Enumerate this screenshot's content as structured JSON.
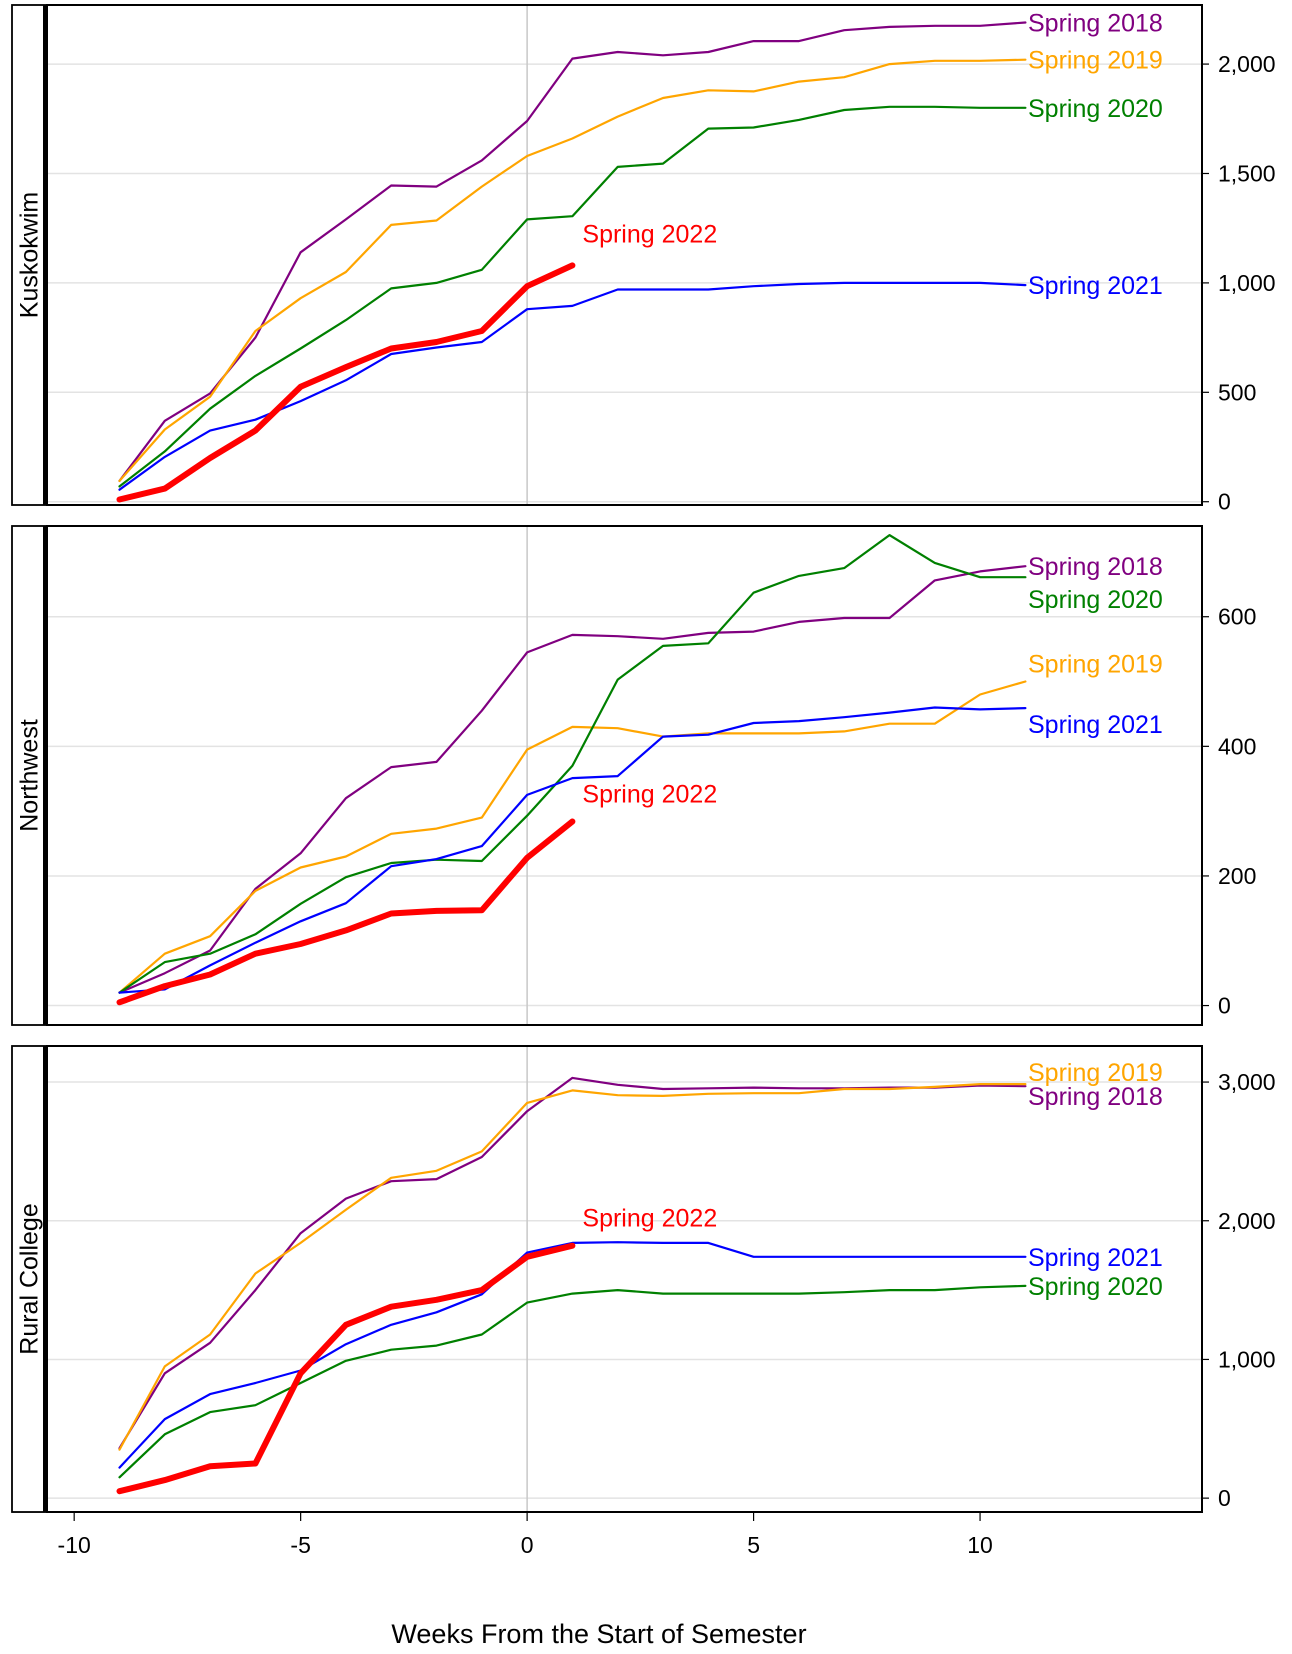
{
  "chart_data": {
    "type": "line",
    "xlabel": "Weeks From the Start of Semester",
    "xlim": [
      -10.6,
      14.9
    ],
    "xticks": [
      -10,
      -5,
      0,
      5,
      10
    ],
    "reference_line_x": 0,
    "grid": "horizontal",
    "y_axis_side": "right",
    "panels": [
      {
        "label": "Kuskokwim",
        "ylim": [
          -15,
          2270
        ],
        "yticks": [
          0,
          500,
          1000,
          1500,
          2000
        ],
        "ytick_labels": [
          "0",
          "500",
          "1,000",
          "1,500",
          "2,000"
        ],
        "series": [
          {
            "name": "Spring 2018",
            "color": "#800080",
            "emphasis": false,
            "x": [
              -9,
              -8,
              -7,
              -6,
              -5,
              -4,
              -3,
              -2,
              -1,
              0,
              1,
              2,
              3,
              4,
              5,
              6,
              7,
              8,
              9,
              10,
              11
            ],
            "values": [
              95,
              370,
              495,
              750,
              1140,
              1290,
              1445,
              1440,
              1560,
              1740,
              2025,
              2055,
              2040,
              2055,
              2105,
              2105,
              2155,
              2170,
              2175,
              2175,
              2190
            ]
          },
          {
            "name": "Spring 2019",
            "color": "#FFA500",
            "emphasis": false,
            "x": [
              -9,
              -8,
              -7,
              -6,
              -5,
              -4,
              -3,
              -2,
              -1,
              0,
              1,
              2,
              3,
              4,
              5,
              6,
              7,
              8,
              9,
              10,
              11
            ],
            "values": [
              95,
              330,
              480,
              780,
              930,
              1050,
              1265,
              1285,
              1440,
              1580,
              1660,
              1760,
              1845,
              1880,
              1875,
              1920,
              1940,
              2000,
              2015,
              2015,
              2020
            ]
          },
          {
            "name": "Spring 2020",
            "color": "#008000",
            "emphasis": false,
            "x": [
              -9,
              -8,
              -7,
              -6,
              -5,
              -4,
              -3,
              -2,
              -1,
              0,
              1,
              2,
              3,
              4,
              5,
              6,
              7,
              8,
              9,
              10,
              11
            ],
            "values": [
              70,
              230,
              425,
              575,
              700,
              830,
              975,
              1000,
              1060,
              1290,
              1305,
              1530,
              1545,
              1705,
              1710,
              1745,
              1790,
              1805,
              1805,
              1800,
              1800
            ]
          },
          {
            "name": "Spring 2021",
            "color": "#0000FF",
            "emphasis": false,
            "x": [
              -9,
              -8,
              -7,
              -6,
              -5,
              -4,
              -3,
              -2,
              -1,
              0,
              1,
              2,
              3,
              4,
              5,
              6,
              7,
              8,
              9,
              10,
              11
            ],
            "values": [
              55,
              205,
              325,
              375,
              460,
              555,
              675,
              705,
              730,
              880,
              895,
              970,
              970,
              970,
              985,
              995,
              1000,
              1000,
              1000,
              1000,
              990
            ]
          },
          {
            "name": "Spring 2022",
            "color": "#FF0000",
            "emphasis": true,
            "x": [
              -9,
              -8,
              -7,
              -6,
              -5,
              -4,
              -3,
              -2,
              -1,
              0,
              1
            ],
            "values": [
              10,
              60,
              200,
              325,
              525,
              615,
              700,
              730,
              780,
              985,
              1080
            ]
          }
        ]
      },
      {
        "label": "Northwest",
        "ylim": [
          -30,
          740
        ],
        "yticks": [
          0,
          200,
          400,
          600
        ],
        "ytick_labels": [
          "0",
          "200",
          "400",
          "600"
        ],
        "series": [
          {
            "name": "Spring 2018",
            "color": "#800080",
            "emphasis": false,
            "x": [
              -9,
              -8,
              -7,
              -6,
              -5,
              -4,
              -3,
              -2,
              -1,
              0,
              1,
              2,
              3,
              4,
              5,
              6,
              7,
              8,
              9,
              10,
              11
            ],
            "values": [
              20,
              50,
              85,
              180,
              235,
              320,
              368,
              376,
              455,
              545,
              572,
              570,
              566,
              575,
              577,
              592,
              598,
              598,
              656,
              670,
              678
            ]
          },
          {
            "name": "Spring 2019",
            "color": "#FFA500",
            "emphasis": false,
            "x": [
              -9,
              -8,
              -7,
              -6,
              -5,
              -4,
              -3,
              -2,
              -1,
              0,
              1,
              2,
              3,
              4,
              5,
              6,
              7,
              8,
              9,
              10,
              11
            ],
            "values": [
              20,
              80,
              107,
              177,
              213,
              230,
              265,
              273,
              290,
              395,
              430,
              428,
              415,
              420,
              420,
              420,
              423,
              435,
              435,
              480,
              500
            ]
          },
          {
            "name": "Spring 2020",
            "color": "#008000",
            "emphasis": false,
            "x": [
              -9,
              -8,
              -7,
              -6,
              -5,
              -4,
              -3,
              -2,
              -1,
              0,
              1,
              2,
              3,
              4,
              5,
              6,
              7,
              8,
              9,
              10,
              11
            ],
            "values": [
              20,
              67,
              80,
              110,
              157,
              198,
              220,
              225,
              223,
              293,
              370,
              503,
              555,
              559,
              637,
              663,
              675,
              726,
              683,
              661,
              661
            ]
          },
          {
            "name": "Spring 2021",
            "color": "#0000FF",
            "emphasis": false,
            "x": [
              -9,
              -8,
              -7,
              -6,
              -5,
              -4,
              -3,
              -2,
              -1,
              0,
              1,
              2,
              3,
              4,
              5,
              6,
              7,
              8,
              9,
              10,
              11
            ],
            "values": [
              20,
              25,
              62,
              97,
              130,
              158,
              215,
              226,
              246,
              325,
              351,
              354,
              415,
              418,
              436,
              439,
              445,
              452,
              460,
              457,
              459
            ]
          },
          {
            "name": "Spring 2022",
            "color": "#FF0000",
            "emphasis": true,
            "x": [
              -9,
              -8,
              -7,
              -6,
              -5,
              -4,
              -3,
              -2,
              -1,
              0,
              1
            ],
            "values": [
              5,
              30,
              48,
              80,
              95,
              116,
              142,
              146,
              147,
              228,
              284
            ]
          }
        ]
      },
      {
        "label": "Rural College",
        "ylim": [
          -100,
          3260
        ],
        "yticks": [
          0,
          1000,
          2000,
          3000
        ],
        "ytick_labels": [
          "0",
          "1,000",
          "2,000",
          "3,000"
        ],
        "series": [
          {
            "name": "Spring 2018",
            "color": "#800080",
            "emphasis": false,
            "x": [
              -9,
              -8,
              -7,
              -6,
              -5,
              -4,
              -3,
              -2,
              -1,
              0,
              1,
              2,
              3,
              4,
              5,
              6,
              7,
              8,
              9,
              10,
              11
            ],
            "values": [
              360,
              900,
              1120,
              1500,
              1910,
              2160,
              2285,
              2300,
              2460,
              2790,
              3030,
              2980,
              2950,
              2955,
              2960,
              2955,
              2955,
              2960,
              2960,
              2975,
              2970
            ]
          },
          {
            "name": "Spring 2019",
            "color": "#FFA500",
            "emphasis": false,
            "x": [
              -9,
              -8,
              -7,
              -6,
              -5,
              -4,
              -3,
              -2,
              -1,
              0,
              1,
              2,
              3,
              4,
              5,
              6,
              7,
              8,
              9,
              10,
              11
            ],
            "values": [
              350,
              950,
              1180,
              1620,
              1840,
              2080,
              2310,
              2360,
              2500,
              2850,
              2940,
              2905,
              2900,
              2915,
              2920,
              2920,
              2950,
              2950,
              2965,
              2985,
              2985
            ]
          },
          {
            "name": "Spring 2020",
            "color": "#008000",
            "emphasis": false,
            "x": [
              -9,
              -8,
              -7,
              -6,
              -5,
              -4,
              -3,
              -2,
              -1,
              0,
              1,
              2,
              3,
              4,
              5,
              6,
              7,
              8,
              9,
              10,
              11
            ],
            "values": [
              150,
              460,
              620,
              670,
              830,
              990,
              1070,
              1100,
              1180,
              1410,
              1475,
              1500,
              1475,
              1475,
              1475,
              1475,
              1485,
              1500,
              1500,
              1520,
              1530
            ]
          },
          {
            "name": "Spring 2021",
            "color": "#0000FF",
            "emphasis": false,
            "x": [
              -9,
              -8,
              -7,
              -6,
              -5,
              -4,
              -3,
              -2,
              -1,
              0,
              1,
              2,
              3,
              4,
              5,
              6,
              7,
              8,
              9,
              10,
              11
            ],
            "values": [
              220,
              570,
              750,
              830,
              920,
              1110,
              1250,
              1340,
              1470,
              1770,
              1840,
              1845,
              1840,
              1840,
              1740,
              1740,
              1740,
              1740,
              1740,
              1740,
              1740
            ]
          },
          {
            "name": "Spring 2022",
            "color": "#FF0000",
            "emphasis": true,
            "x": [
              -9,
              -8,
              -7,
              -6,
              -5,
              -4,
              -3,
              -2,
              -1,
              0,
              1
            ],
            "values": [
              50,
              130,
              230,
              250,
              900,
              1250,
              1380,
              1430,
              1500,
              1740,
              1820
            ]
          }
        ]
      }
    ]
  }
}
